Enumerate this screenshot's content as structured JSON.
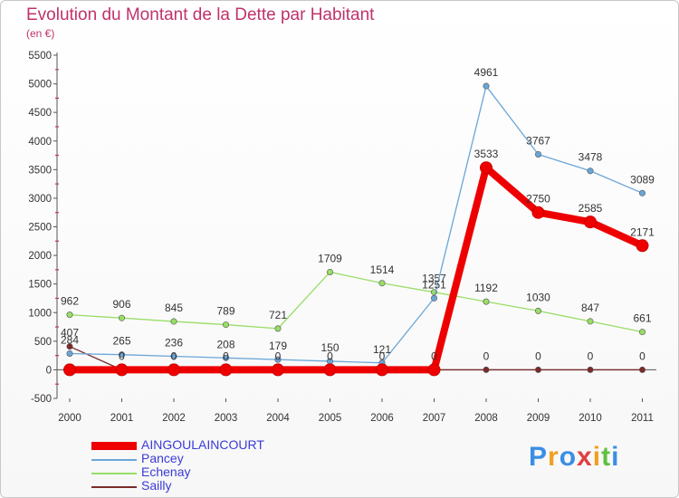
{
  "chart_data": {
    "type": "line",
    "title": "Evolution du Montant de la Dette par Habitant",
    "ylabel": "(en €)",
    "xlabel": "",
    "categories": [
      "2000",
      "2001",
      "2002",
      "2003",
      "2004",
      "2005",
      "2006",
      "2007",
      "2008",
      "2009",
      "2010",
      "2011"
    ],
    "ylim": [
      -500,
      5500
    ],
    "yticks": [
      -500,
      0,
      500,
      1000,
      1500,
      2000,
      2500,
      3000,
      3500,
      4000,
      4500,
      5000,
      5500
    ],
    "legend_position": "bottom-left",
    "series": [
      {
        "name": "Sailly",
        "color": "#7a2a2a",
        "values": [
          407,
          0,
          0,
          0,
          0,
          0,
          0,
          0,
          0,
          0,
          0,
          0
        ],
        "labels": [
          "407",
          "",
          "",
          "",
          "",
          "",
          "",
          "",
          "0",
          "0",
          "0",
          "0"
        ]
      },
      {
        "name": "Echenay",
        "color": "#99dd66",
        "values": [
          962,
          906,
          845,
          789,
          721,
          1709,
          1514,
          1357,
          1192,
          1030,
          847,
          661
        ],
        "labels": [
          "962",
          "906",
          "845",
          "789",
          "721",
          "1709",
          "1514",
          "1357",
          "1192",
          "1030",
          "847",
          "661"
        ]
      },
      {
        "name": "Pancey",
        "color": "#6aa6d8",
        "values": [
          284,
          265,
          236,
          208,
          179,
          150,
          121,
          1251,
          4961,
          3767,
          3478,
          3089
        ],
        "labels": [
          "284",
          "265",
          "236",
          "208",
          "179",
          "150",
          "121",
          "1251",
          "4961",
          "3767",
          "3478",
          "3089"
        ]
      },
      {
        "name": "AINGOULAINCOURT",
        "color": "#ee0000",
        "thick": true,
        "values": [
          0,
          0,
          0,
          0,
          0,
          0,
          0,
          0,
          3533,
          2750,
          2585,
          2171
        ],
        "labels": [
          "",
          "0",
          "0",
          "0",
          "0",
          "0",
          "0",
          "0",
          "3533",
          "2750",
          "2585",
          "2171"
        ]
      }
    ],
    "legend_order": [
      "AINGOULAINCOURT",
      "Pancey",
      "Echenay",
      "Sailly"
    ]
  },
  "logo": {
    "letters": [
      "P",
      "r",
      "o",
      "x",
      "i",
      "t",
      "i"
    ],
    "colors": [
      "#3a8ee6",
      "#f0a020",
      "#3a8ee6",
      "#e04040",
      "#f0a020",
      "#60c040",
      "#3a8ee6"
    ]
  }
}
